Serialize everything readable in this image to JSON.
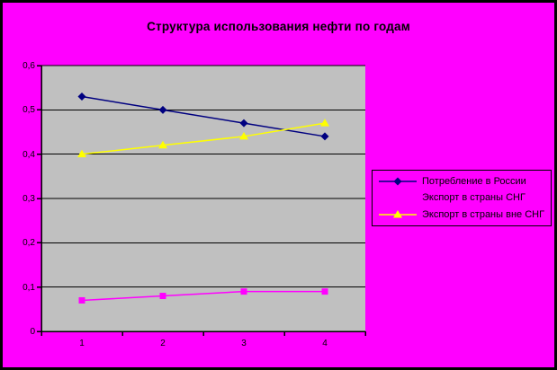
{
  "window": {
    "background_color": "#FF00FF",
    "border_color": "#000000"
  },
  "chart_data": {
    "type": "line",
    "title": "Структура использования нефти по годам",
    "categories": [
      "1",
      "2",
      "3",
      "4"
    ],
    "series": [
      {
        "name": "Потребление в России",
        "color": "#000080",
        "marker": "diamond",
        "values": [
          0.53,
          0.5,
          0.47,
          0.44
        ]
      },
      {
        "name": "Экспорт в страны СНГ",
        "color": "#FF00FF",
        "marker": "square",
        "values": [
          0.07,
          0.08,
          0.09,
          0.09
        ]
      },
      {
        "name": "Экспорт в страны вне СНГ",
        "color": "#FFFF00",
        "marker": "triangle",
        "values": [
          0.4,
          0.42,
          0.44,
          0.47
        ]
      }
    ],
    "ylim": [
      0,
      0.6
    ],
    "y_tick_values": [
      0,
      0.1,
      0.2,
      0.3,
      0.4,
      0.5,
      0.6
    ],
    "y_tick_labels": [
      "0",
      "0,1",
      "0,2",
      "0,3",
      "0,4",
      "0,5",
      "0,6"
    ],
    "xlabel": "",
    "ylabel": "",
    "grid": true,
    "legend_position": "right",
    "plot_background": "#C0C0C0",
    "axis_color": "#000000"
  }
}
